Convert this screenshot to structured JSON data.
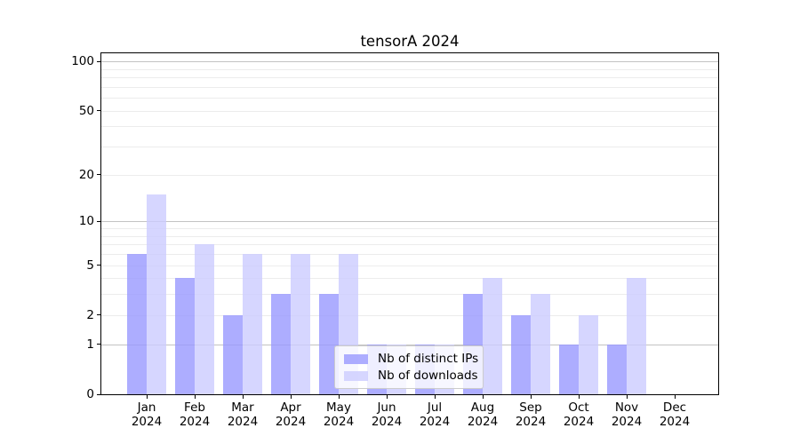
{
  "chart_data": {
    "type": "bar",
    "title": "tensorA 2024",
    "categories": [
      "Jan",
      "Feb",
      "Mar",
      "Apr",
      "May",
      "Jun",
      "Jul",
      "Aug",
      "Sep",
      "Oct",
      "Nov",
      "Dec"
    ],
    "category_year": "2024",
    "series": [
      {
        "name": "Nb of distinct IPs",
        "key": "distinct-ips",
        "color": "#9999ff",
        "alpha": 0.8,
        "values": [
          6,
          4,
          2,
          3,
          3,
          1,
          1,
          3,
          2,
          1,
          1,
          0
        ]
      },
      {
        "name": "Nb of downloads",
        "key": "downloads",
        "color": "#ccccff",
        "alpha": 0.8,
        "values": [
          15,
          7,
          6,
          6,
          6,
          1,
          1,
          4,
          3,
          2,
          4,
          0
        ]
      }
    ],
    "y_axis": {
      "scale": "log10(1+value)",
      "tick_values": [
        0,
        1,
        2,
        5,
        10,
        20,
        50,
        100
      ],
      "tick_labels": [
        "0",
        "1",
        "2",
        "5",
        "10",
        "20",
        "50",
        "100"
      ],
      "major_grid_values": [
        1,
        10,
        100
      ],
      "minor_grid_values": [
        2,
        3,
        4,
        5,
        6,
        7,
        8,
        9,
        20,
        30,
        40,
        50,
        60,
        70,
        80,
        90
      ],
      "ylim_bottom": 0
    },
    "legend_location": "lower center",
    "grid": true
  }
}
